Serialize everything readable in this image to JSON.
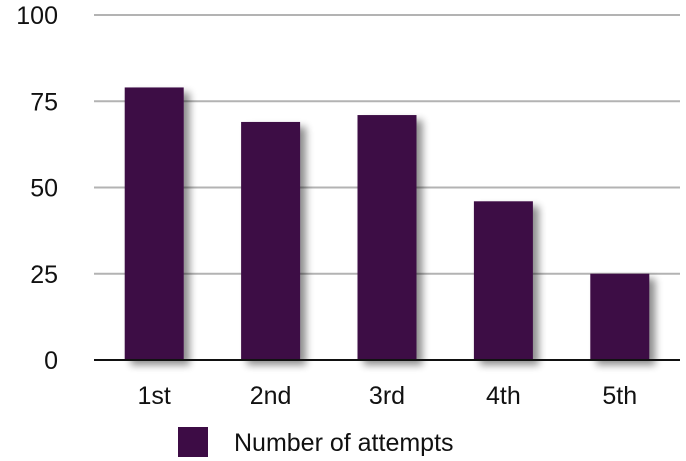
{
  "chart_data": {
    "type": "bar",
    "categories": [
      "1st",
      "2nd",
      "3rd",
      "4th",
      "5th"
    ],
    "series": [
      {
        "name": "Number of attempts",
        "values": [
          79,
          69,
          71,
          46,
          25
        ],
        "color": "#3d0c45"
      }
    ],
    "ylim": [
      0,
      100
    ],
    "yticks": [
      0,
      25,
      50,
      75,
      100
    ],
    "ytick_labels": [
      "0",
      "25",
      "50",
      "75",
      "100"
    ],
    "grid": true,
    "legend": "bottom",
    "colors": {
      "bar": "#3d0c45",
      "grid": "#b3b3b3",
      "axis": "#111111"
    }
  }
}
